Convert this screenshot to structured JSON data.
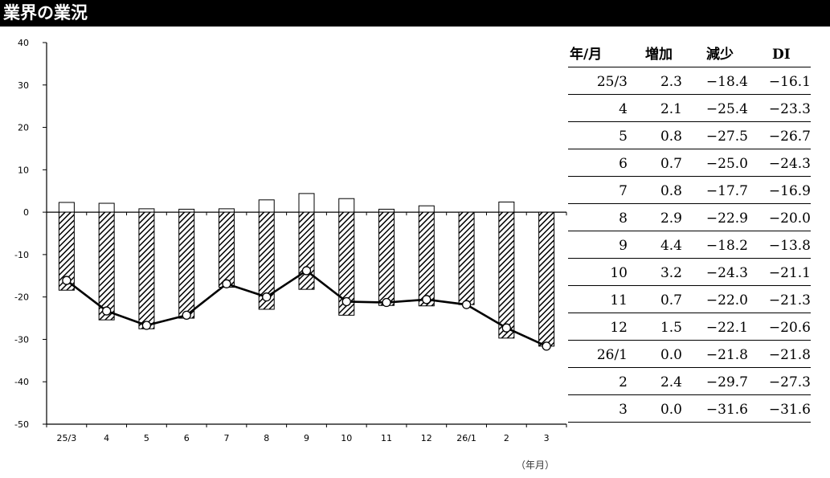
{
  "header": {
    "title": "業界の業況"
  },
  "chart_data": {
    "type": "bar",
    "categories": [
      "25/3",
      "4",
      "5",
      "6",
      "7",
      "8",
      "9",
      "10",
      "11",
      "12",
      "26/1",
      "2",
      "3"
    ],
    "series": [
      {
        "name": "増加",
        "kind": "bar",
        "values": [
          2.3,
          2.1,
          0.8,
          0.7,
          0.8,
          2.9,
          4.4,
          3.2,
          0.7,
          1.5,
          0.0,
          2.4,
          0.0
        ]
      },
      {
        "name": "減少",
        "kind": "bar",
        "values": [
          -18.4,
          -25.4,
          -27.5,
          -25.0,
          -17.7,
          -22.9,
          -18.2,
          -24.3,
          -22.0,
          -22.1,
          -21.8,
          -29.7,
          -31.6
        ]
      },
      {
        "name": "DI",
        "kind": "line",
        "values": [
          -16.1,
          -23.3,
          -26.7,
          -24.3,
          -16.9,
          -20.0,
          -13.8,
          -21.1,
          -21.3,
          -20.6,
          -21.8,
          -27.3,
          -31.6
        ]
      }
    ],
    "yticks": [
      "40",
      "30",
      "20",
      "10",
      "0",
      "-10",
      "-20",
      "-30",
      "-40",
      "-50"
    ],
    "ylim": [
      -50,
      40
    ],
    "xlabel": "（年月）",
    "grid": false
  },
  "table": {
    "headers": [
      "年/月",
      "増加",
      "減少",
      "DI"
    ],
    "rows": [
      [
        "25/3",
        "2.3",
        "−18.4",
        "−16.1"
      ],
      [
        "4",
        "2.1",
        "−25.4",
        "−23.3"
      ],
      [
        "5",
        "0.8",
        "−27.5",
        "−26.7"
      ],
      [
        "6",
        "0.7",
        "−25.0",
        "−24.3"
      ],
      [
        "7",
        "0.8",
        "−17.7",
        "−16.9"
      ],
      [
        "8",
        "2.9",
        "−22.9",
        "−20.0"
      ],
      [
        "9",
        "4.4",
        "−18.2",
        "−13.8"
      ],
      [
        "10",
        "3.2",
        "−24.3",
        "−21.1"
      ],
      [
        "11",
        "0.7",
        "−22.0",
        "−21.3"
      ],
      [
        "12",
        "1.5",
        "−22.1",
        "−20.6"
      ],
      [
        "26/1",
        "0.0",
        "−21.8",
        "−21.8"
      ],
      [
        "2",
        "2.4",
        "−29.7",
        "−27.3"
      ],
      [
        "3",
        "0.0",
        "−31.6",
        "−31.6"
      ]
    ]
  }
}
